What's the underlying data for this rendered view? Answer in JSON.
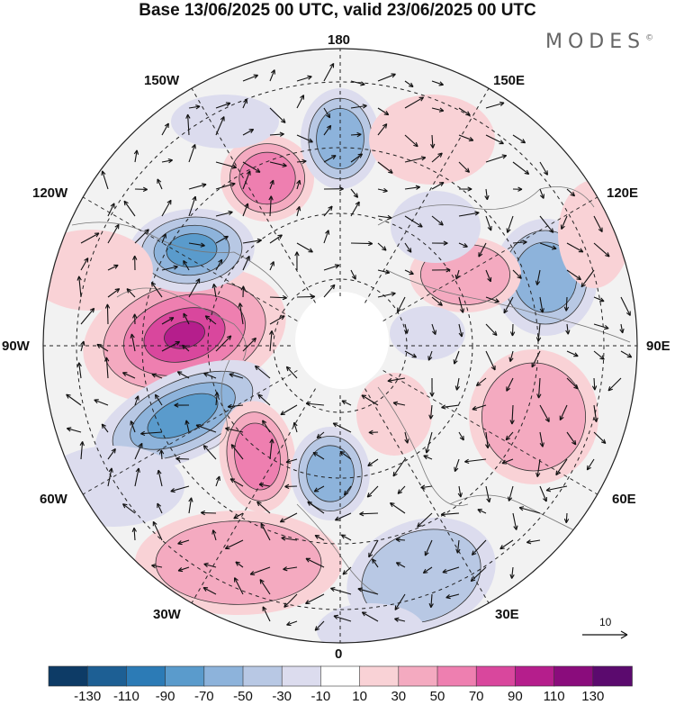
{
  "title": "Base 13/06/2025 00 UTC, valid 23/06/2025 00 UTC",
  "brand": "MODES",
  "brand_mark": "©",
  "longitude_labels": {
    "lon_180": "180",
    "lon_150e": "150E",
    "lon_120e": "120E",
    "lon_90e": "90E",
    "lon_60e": "60E",
    "lon_30e": "30E",
    "lon_0": "0",
    "lon_30w": "30W",
    "lon_60w": "60W",
    "lon_90w": "90W",
    "lon_120w": "120W",
    "lon_150w": "150W"
  },
  "reference_vector": "10",
  "colorbar": {
    "colors": [
      "#0d3b66",
      "#1d5f94",
      "#2c7bb6",
      "#5a9bcc",
      "#8db3db",
      "#b8c8e4",
      "#dcdcee",
      "#ffffff",
      "#f9d2d6",
      "#f4aac0",
      "#ee7fb0",
      "#d9479d",
      "#b51e8c",
      "#8a0c7c",
      "#5b0a6e"
    ],
    "ticks": [
      "-130",
      "-110",
      "-90",
      "-70",
      "-50",
      "-30",
      "-10",
      "10",
      "30",
      "50",
      "70",
      "90",
      "110",
      "130"
    ]
  },
  "anomaly_colors": {
    "neg_light": "#dcdcee",
    "neg_mid": "#b8c8e4",
    "neg_strong": "#8db3db",
    "neg_deep": "#5a9bcc",
    "neg_core": "#2c7bb6",
    "pos_light": "#f9d2d6",
    "pos_mid": "#f4aac0",
    "pos_strong": "#ee7fb0",
    "pos_deep": "#d9479d",
    "pos_core": "#b51e8c"
  }
}
